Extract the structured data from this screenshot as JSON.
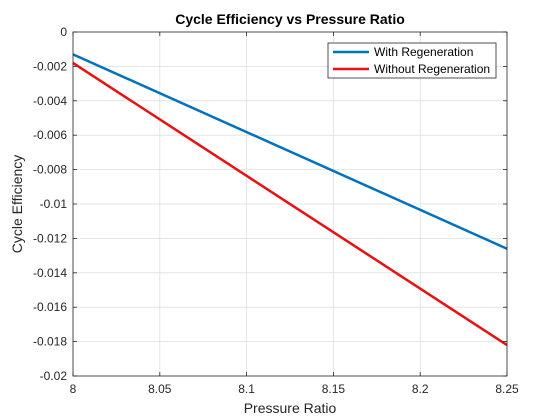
{
  "chart_data": {
    "type": "line",
    "title": "Cycle Efficiency vs Pressure Ratio",
    "xlabel": "Pressure Ratio",
    "ylabel": "Cycle Efficiency",
    "xlim": [
      8,
      8.25
    ],
    "ylim": [
      -0.02,
      0
    ],
    "xticks": [
      8,
      8.05,
      8.1,
      8.15,
      8.2,
      8.25
    ],
    "xtick_labels": [
      "8",
      "8.05",
      "8.1",
      "8.15",
      "8.2",
      "8.25"
    ],
    "yticks": [
      0,
      -0.002,
      -0.004,
      -0.006,
      -0.008,
      -0.01,
      -0.012,
      -0.014,
      -0.016,
      -0.018,
      -0.02
    ],
    "ytick_labels": [
      "0",
      "-0.002",
      "-0.004",
      "-0.006",
      "-0.008",
      "-0.01",
      "-0.012",
      "-0.014",
      "-0.016",
      "-0.018",
      "-0.02"
    ],
    "grid": true,
    "legend_position": "top-right",
    "series": [
      {
        "name": "With Regeneration",
        "color": "#0072BD",
        "x": [
          8,
          8.25
        ],
        "y": [
          -0.0013,
          -0.0126
        ]
      },
      {
        "name": "Without Regeneration",
        "color": "#E81010",
        "x": [
          8,
          8.25
        ],
        "y": [
          -0.0018,
          -0.0182
        ]
      }
    ]
  }
}
